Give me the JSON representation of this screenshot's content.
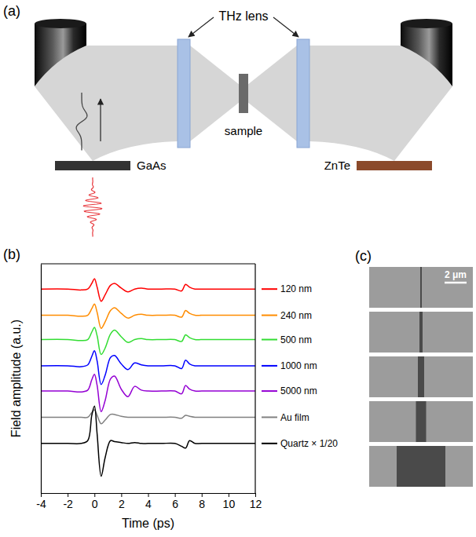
{
  "diagram": {
    "label": "(a)",
    "lens_label": "THz lens",
    "sample_label": "sample",
    "emitter_label": "GaAs",
    "detector_label": "ZnTe"
  },
  "chart_data": {
    "type": "line",
    "title": "(b)",
    "x_label": "Time (ps)",
    "y_label": "Field amplitude (a.u.)",
    "x": [
      -4,
      -2,
      -1,
      -0.5,
      -0.2,
      0,
      0.2,
      0.5,
      0.8,
      1.2,
      1.5,
      2,
      2.5,
      3,
      3.5,
      4,
      5,
      6,
      6.5,
      6.8,
      7.1,
      7.5,
      8,
      10,
      12
    ],
    "xlim": [
      -4,
      12
    ],
    "xticks": [
      -4,
      -2,
      0,
      2,
      4,
      6,
      8,
      10,
      12
    ],
    "ylim": [
      0,
      24.5
    ],
    "tick_labels": "x",
    "grid": false,
    "legend": "right",
    "series": [
      {
        "name": "120 nm",
        "color": "#ff0000",
        "values": [
          21.8,
          21.8,
          21.7,
          21.8,
          22.4,
          22.9,
          22.0,
          20.5,
          21.2,
          22.2,
          22.4,
          21.9,
          21.5,
          21.8,
          21.9,
          21.8,
          21.8,
          21.8,
          21.6,
          22.3,
          22.0,
          21.8,
          21.8,
          21.8,
          21.8
        ]
      },
      {
        "name": "240 nm",
        "color": "#ff8c00",
        "values": [
          19.0,
          19.0,
          18.9,
          19.0,
          19.7,
          20.2,
          19.3,
          17.6,
          18.3,
          19.5,
          19.8,
          19.2,
          18.7,
          19.0,
          19.1,
          19.0,
          19.0,
          19.0,
          18.8,
          19.5,
          19.2,
          19.0,
          19.0,
          19.0,
          19.0
        ]
      },
      {
        "name": "500 nm",
        "color": "#33dd33",
        "values": [
          16.4,
          16.4,
          16.3,
          16.4,
          17.2,
          17.7,
          16.8,
          14.8,
          15.5,
          17.0,
          17.4,
          16.7,
          16.1,
          16.4,
          16.5,
          16.4,
          16.4,
          16.4,
          16.2,
          16.9,
          16.6,
          16.4,
          16.4,
          16.4,
          16.4
        ]
      },
      {
        "name": "1000 nm",
        "color": "#0000ff",
        "values": [
          13.6,
          13.6,
          13.5,
          13.7,
          14.6,
          15.2,
          14.1,
          11.6,
          12.6,
          14.5,
          14.7,
          13.8,
          13.2,
          13.9,
          13.7,
          13.6,
          13.6,
          13.6,
          13.3,
          14.2,
          13.8,
          13.6,
          13.6,
          13.6,
          13.6
        ]
      },
      {
        "name": "5000 nm",
        "color": "#9400d3",
        "values": [
          10.9,
          10.9,
          10.8,
          11.0,
          12.1,
          12.7,
          11.5,
          8.7,
          9.9,
          12.2,
          12.5,
          11.1,
          10.3,
          11.4,
          11.0,
          10.9,
          10.9,
          10.9,
          10.6,
          11.5,
          11.1,
          10.9,
          10.9,
          10.9,
          10.9
        ]
      },
      {
        "name": "Au film",
        "color": "#808080",
        "values": [
          8.1,
          8.1,
          8.1,
          8.1,
          8.6,
          8.9,
          8.3,
          7.4,
          7.8,
          8.4,
          8.4,
          8.2,
          8.1,
          8.1,
          8.1,
          8.1,
          8.1,
          8.1,
          8.0,
          8.3,
          8.2,
          8.1,
          8.1,
          8.1,
          8.1
        ]
      },
      {
        "name": "Quartz × 1/20",
        "color": "#000000",
        "values": [
          5.3,
          5.3,
          5.3,
          5.6,
          8.3,
          9.3,
          6.3,
          1.8,
          3.8,
          5.6,
          5.5,
          5.4,
          5.3,
          5.4,
          5.3,
          5.3,
          5.3,
          5.3,
          5.0,
          4.8,
          5.6,
          5.3,
          5.3,
          5.3,
          5.3
        ]
      }
    ]
  },
  "images": {
    "label": "(c)",
    "scale_bar": "2 μm"
  }
}
